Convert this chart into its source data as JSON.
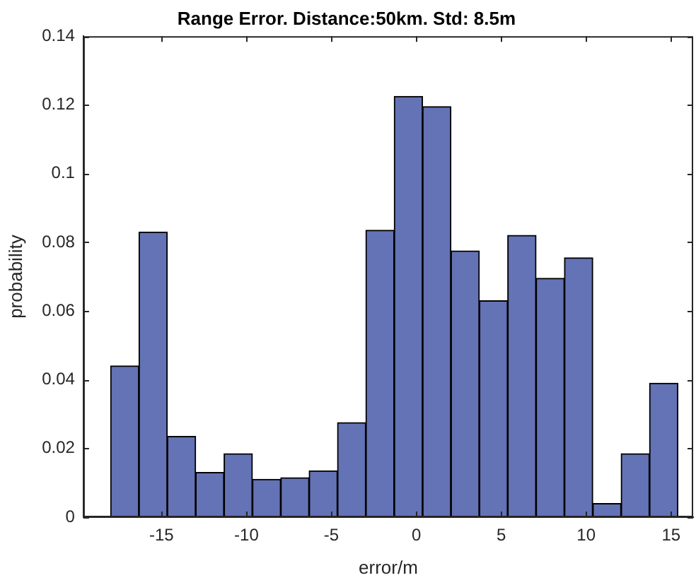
{
  "chart_data": {
    "type": "histogram",
    "title": "Range Error. Distance:50km. Std: 8.5m",
    "xlabel": "error/m",
    "ylabel": "probability",
    "color": "#6473b5",
    "bins": [
      -18,
      -16.33,
      -14.66,
      -12.99,
      -11.32,
      -9.65,
      -7.98,
      -6.31,
      -4.64,
      -2.97,
      -1.3,
      0.37,
      2.04,
      3.71,
      5.38,
      7.05,
      8.72,
      10.39,
      12.06,
      13.73,
      15.4
    ],
    "values": [
      0.044,
      0.083,
      0.0235,
      0.013,
      0.0185,
      0.011,
      0.0115,
      0.0135,
      0.0275,
      0.0835,
      0.1225,
      0.1195,
      0.0775,
      0.063,
      0.082,
      0.0695,
      0.0755,
      0.004,
      0.0185,
      0.039
    ],
    "xlim": [
      -19.6,
      16.3
    ],
    "xticks": [
      -15,
      -10,
      -5,
      0,
      5,
      10,
      15
    ],
    "ylim": [
      0,
      0.14
    ],
    "yticks": [
      0,
      0.02,
      0.04,
      0.06,
      0.08,
      0.1,
      0.12,
      0.14
    ],
    "grid": false
  }
}
